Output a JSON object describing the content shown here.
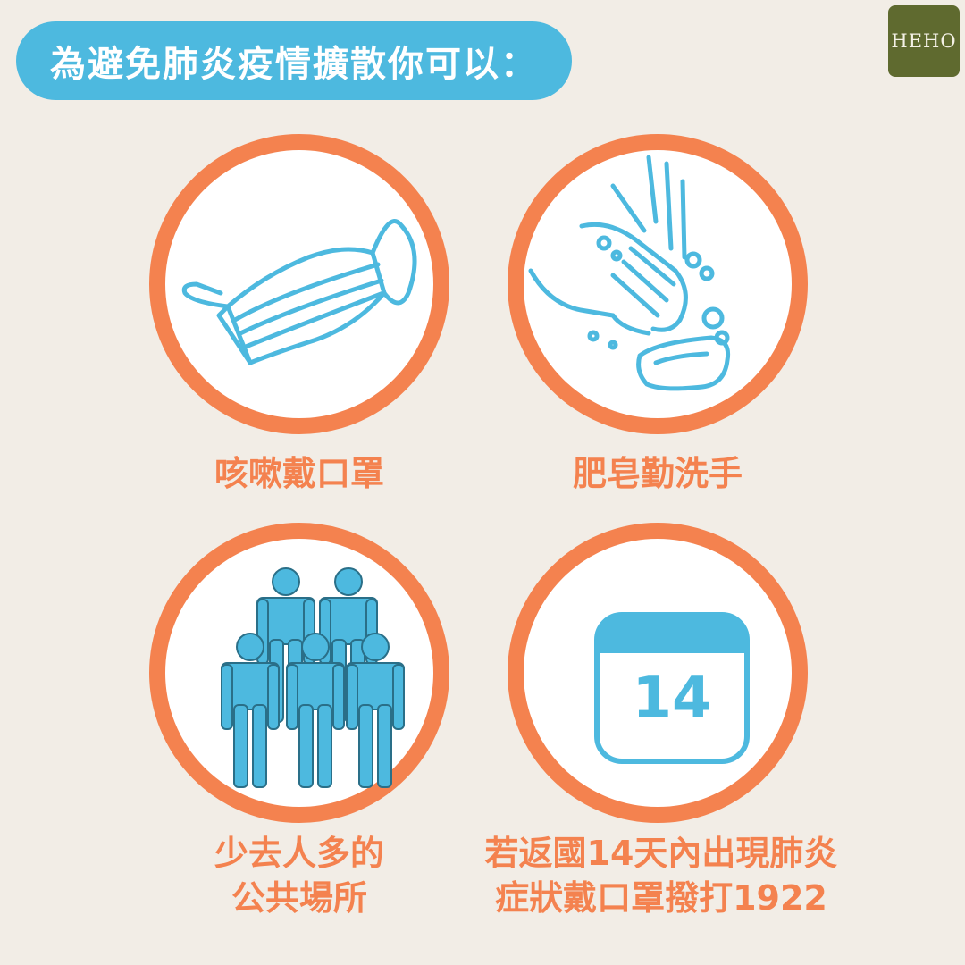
{
  "header": {
    "title": "為避免肺炎疫情擴散你可以："
  },
  "logo": {
    "text": "HEHO"
  },
  "colors": {
    "background": "#f2ede6",
    "accent_blue": "#4db9df",
    "accent_orange": "#f4824f",
    "logo_green": "#5f6a2f"
  },
  "tips": [
    {
      "icon": "face-mask-icon",
      "lines": [
        "咳嗽戴口罩"
      ]
    },
    {
      "icon": "hand-washing-soap-icon",
      "lines": [
        "肥皂勤洗手"
      ]
    },
    {
      "icon": "crowd-people-icon",
      "lines": [
        "少去人多的",
        "公共場所"
      ]
    },
    {
      "icon": "calendar-icon",
      "calendar_number": "14",
      "lines": [
        "若返國14天內出現肺炎",
        "症狀戴口罩撥打1922"
      ]
    }
  ]
}
